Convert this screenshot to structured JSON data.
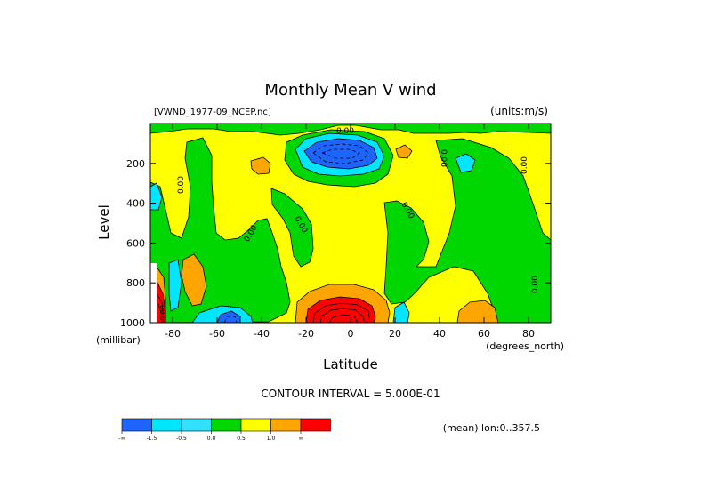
{
  "chart_data": {
    "type": "heatmap",
    "title": "Monthly Mean V wind",
    "dataset_label": "[VWND_1977-09_NCEP.nc]",
    "units_label": "(units:m/s)",
    "xlabel": "Latitude",
    "x_units": "(degrees_north)",
    "ylabel": "Level",
    "y_units": "(millibar)",
    "xlim": [
      -90,
      90
    ],
    "ylim": [
      1000,
      0
    ],
    "x_ticks": [
      -80,
      -60,
      -40,
      -20,
      0,
      20,
      40,
      60,
      80
    ],
    "y_ticks": [
      200,
      400,
      600,
      800,
      1000
    ],
    "contour_interval_text": "CONTOUR INTERVAL = 5.000E-01",
    "mean_text": "(mean) lon:0..357.5",
    "zero_labels": [
      "0.00",
      "0.00",
      "0.00",
      "0.00",
      "0.00",
      "0.00",
      "0.00",
      "0.00",
      "0.00"
    ],
    "colorbar": {
      "colors": [
        "#1e64ff",
        "#00e6ff",
        "#33e0ff",
        "#00d600",
        "#ffff00",
        "#ffa500",
        "#ff0000"
      ],
      "labels": [
        "-∞",
        "-1.5",
        "-0.5",
        "0.0",
        "0.5",
        "1.0",
        "∞"
      ]
    },
    "levels": [
      -1.5,
      -1.0,
      -0.5,
      0.0,
      0.5,
      1.0,
      1.5
    ]
  }
}
